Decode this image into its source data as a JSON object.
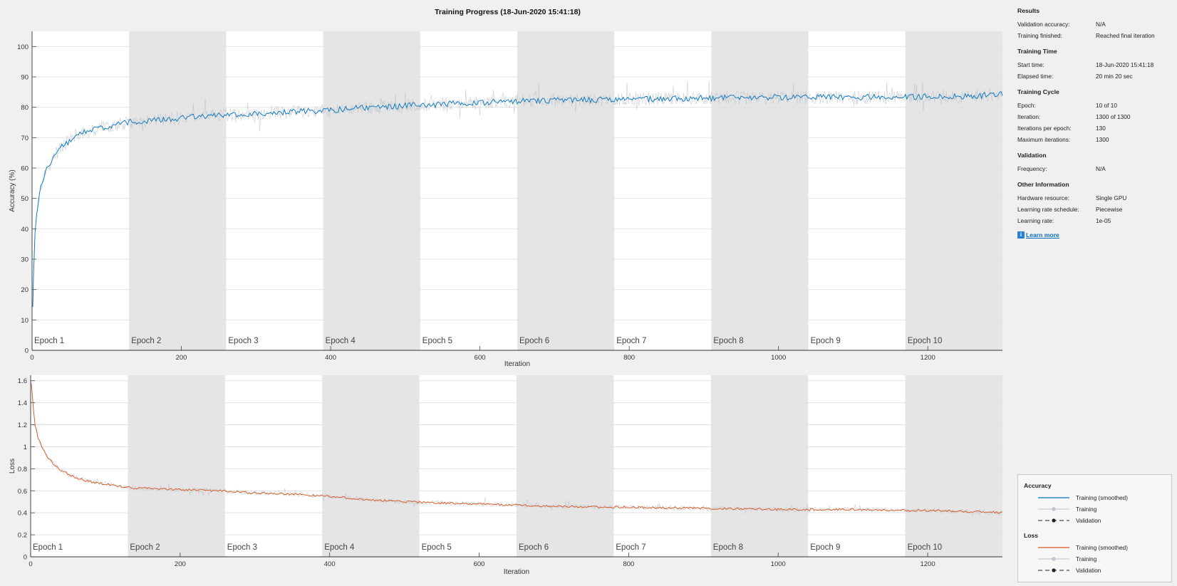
{
  "title": "Training Progress (18-Jun-2020 15:41:18)",
  "colors": {
    "accuracy_smoothed": "#0072bd",
    "loss_smoothed": "#d95319",
    "training_raw": "#b8bfc7",
    "epoch_band_gray": "#e5e5e5",
    "plot_bg": "#ffffff",
    "grid": "#e2e2e2"
  },
  "chart_data": [
    {
      "type": "line",
      "xlabel": "Iteration",
      "ylabel": "Accuracy (%)",
      "xlim": [
        0,
        1300
      ],
      "ylim": [
        0,
        105
      ],
      "xticks": [
        0,
        200,
        400,
        600,
        800,
        1000,
        1200
      ],
      "yticks": [
        0,
        10,
        20,
        30,
        40,
        50,
        60,
        70,
        80,
        90,
        100
      ],
      "grid": true,
      "epochs": {
        "iterations_per_epoch": 130,
        "labels": [
          "Epoch 1",
          "Epoch 2",
          "Epoch 3",
          "Epoch 4",
          "Epoch 5",
          "Epoch 6",
          "Epoch 7",
          "Epoch 8",
          "Epoch 9",
          "Epoch 10"
        ]
      },
      "series": [
        {
          "name": "Training (smoothed)",
          "x": [
            1,
            3,
            6,
            10,
            15,
            20,
            30,
            40,
            50,
            60,
            75,
            90,
            110,
            130,
            150,
            175,
            200,
            230,
            260,
            300,
            350,
            400,
            450,
            500,
            550,
            600,
            650,
            700,
            800,
            900,
            1000,
            1100,
            1200,
            1260,
            1300
          ],
          "values": [
            14,
            35,
            45,
            52,
            56,
            60,
            64,
            67,
            69,
            71,
            72,
            73,
            74,
            75,
            75.5,
            76,
            76.5,
            77,
            77.5,
            78,
            78.5,
            79,
            80,
            80.5,
            81,
            81.5,
            82,
            82.3,
            82.6,
            83,
            83.2,
            83.3,
            83.5,
            83.6,
            84.5
          ]
        }
      ]
    },
    {
      "type": "line",
      "xlabel": "Iteration",
      "ylabel": "Loss",
      "xlim": [
        0,
        1300
      ],
      "ylim": [
        0,
        1.65
      ],
      "xticks": [
        0,
        200,
        400,
        600,
        800,
        1000,
        1200
      ],
      "yticks": [
        0,
        0.2,
        0.4,
        0.6,
        0.8,
        1,
        1.2,
        1.4,
        1.6
      ],
      "grid": true,
      "epochs": {
        "iterations_per_epoch": 130,
        "labels": [
          "Epoch 1",
          "Epoch 2",
          "Epoch 3",
          "Epoch 4",
          "Epoch 5",
          "Epoch 6",
          "Epoch 7",
          "Epoch 8",
          "Epoch 9",
          "Epoch 10"
        ]
      },
      "series": [
        {
          "name": "Training (smoothed)",
          "x": [
            1,
            3,
            6,
            10,
            15,
            20,
            30,
            40,
            50,
            60,
            75,
            90,
            110,
            130,
            160,
            200,
            250,
            300,
            350,
            400,
            450,
            500,
            600,
            700,
            800,
            900,
            1000,
            1100,
            1200,
            1270,
            1300
          ],
          "values": [
            1.58,
            1.4,
            1.2,
            1.08,
            1.0,
            0.93,
            0.85,
            0.79,
            0.75,
            0.72,
            0.69,
            0.67,
            0.65,
            0.63,
            0.62,
            0.61,
            0.6,
            0.58,
            0.57,
            0.55,
            0.52,
            0.5,
            0.48,
            0.46,
            0.45,
            0.44,
            0.43,
            0.43,
            0.42,
            0.41,
            0.4
          ]
        }
      ]
    }
  ],
  "info": {
    "sections": [
      {
        "heading": "Results",
        "rows": [
          {
            "key": "Validation accuracy:",
            "value": "N/A"
          },
          {
            "key": "Training finished:",
            "value": "Reached final iteration"
          }
        ]
      },
      {
        "heading": "Training Time",
        "rows": [
          {
            "key": "Start time:",
            "value": "18-Jun-2020 15:41:18"
          },
          {
            "key": "Elapsed time:",
            "value": "20 min 20 sec"
          }
        ]
      },
      {
        "heading": "Training Cycle",
        "rows": [
          {
            "key": "Epoch:",
            "value": "10 of 10"
          },
          {
            "key": "Iteration:",
            "value": "1300 of 1300"
          },
          {
            "key": "Iterations per epoch:",
            "value": "130"
          },
          {
            "key": "Maximum iterations:",
            "value": "1300"
          }
        ]
      },
      {
        "heading": "Validation",
        "rows": [
          {
            "key": "Frequency:",
            "value": "N/A"
          }
        ]
      },
      {
        "heading": "Other Information",
        "rows": [
          {
            "key": "Hardware resource:",
            "value": "Single GPU"
          },
          {
            "key": "Learning rate schedule:",
            "value": "Piecewise"
          },
          {
            "key": "Learning rate:",
            "value": "1e-05"
          }
        ]
      }
    ],
    "learn_more": "Learn more",
    "info_icon": "info-icon"
  },
  "legend": {
    "accuracy_heading": "Accuracy",
    "loss_heading": "Loss",
    "accuracy_items": [
      "Training (smoothed)",
      "Training",
      "Validation"
    ],
    "loss_items": [
      "Training (smoothed)",
      "Training",
      "Validation"
    ]
  }
}
